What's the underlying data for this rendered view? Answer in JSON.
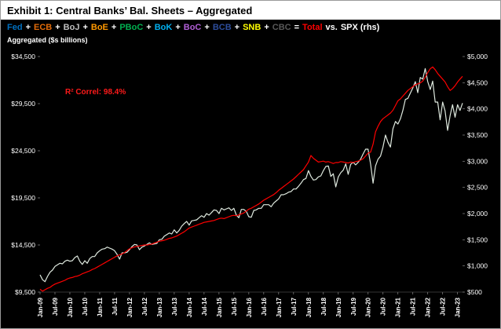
{
  "title": "Exhibit 1: Central Banks’ Bal. Sheets – Aggregated",
  "subtitle": "Aggregated ($s billions)",
  "annotation": {
    "r2": "R² Correl: 98.4%",
    "color": "#ff1a1a"
  },
  "legend": {
    "segments": [
      {
        "name": "fed",
        "text": "Fed",
        "color": "#0070C0"
      },
      {
        "name": "plus-1",
        "text": "+",
        "color": "#ffffff"
      },
      {
        "name": "ecb",
        "text": "ECB",
        "color": "#e36c0a"
      },
      {
        "name": "plus-2",
        "text": "+",
        "color": "#ffffff"
      },
      {
        "name": "boj",
        "text": "BoJ",
        "color": "#bfbfbf"
      },
      {
        "name": "plus-3",
        "text": "+",
        "color": "#ffffff"
      },
      {
        "name": "boe",
        "text": "BoE",
        "color": "#ff9900"
      },
      {
        "name": "plus-4",
        "text": "+",
        "color": "#ffffff"
      },
      {
        "name": "pboc",
        "text": "PBoC",
        "color": "#00b050"
      },
      {
        "name": "plus-5",
        "text": "+",
        "color": "#ffffff"
      },
      {
        "name": "bok",
        "text": "BoK",
        "color": "#00b0f0"
      },
      {
        "name": "plus-6",
        "text": "+",
        "color": "#ffffff"
      },
      {
        "name": "boc",
        "text": "BoC",
        "color": "#b25fd8"
      },
      {
        "name": "plus-7",
        "text": "+",
        "color": "#ffffff"
      },
      {
        "name": "bcb",
        "text": "BCB",
        "color": "#2d4d9b"
      },
      {
        "name": "plus-8",
        "text": "+",
        "color": "#ffffff"
      },
      {
        "name": "snb",
        "text": "SNB",
        "color": "#ffff00"
      },
      {
        "name": "plus-9",
        "text": "+",
        "color": "#ffffff"
      },
      {
        "name": "cbc",
        "text": "CBC",
        "color": "#595959"
      },
      {
        "name": "equals",
        "text": "=",
        "color": "#ffffff"
      },
      {
        "name": "total",
        "text": "Total",
        "color": "#ff0000"
      },
      {
        "name": "vs",
        "text": "vs.",
        "color": "#ffffff"
      },
      {
        "name": "spx",
        "text": "SPX (rhs)",
        "color": "#ffffff"
      }
    ]
  },
  "chart_data": {
    "type": "line",
    "title": "Exhibit 1: Central Banks’ Bal. Sheets – Aggregated",
    "subtitle": "Aggregated ($s billions)",
    "x_axis": {
      "unit": "month",
      "start_label": "Jan-09",
      "end_label": "Mar-23",
      "tick_interval": 6,
      "tick_labels": [
        "Jan-09",
        "Jul-09",
        "Jan-10",
        "Jul-10",
        "Jan-11",
        "Jul-11",
        "Jan-12",
        "Jul-12",
        "Jan-13",
        "Jul-13",
        "Jan-14",
        "Jul-14",
        "Jan-15",
        "Jul-15",
        "Jan-16",
        "Jul-16",
        "Jan-17",
        "Jul-17",
        "Jan-18",
        "Jul-18",
        "Jan-19",
        "Jul-19",
        "Jan-20",
        "Jul-20",
        "Jan-21",
        "Jul-21",
        "Jan-22",
        "Jul-22",
        "Jan-23"
      ]
    },
    "left_axis": {
      "min": 9500,
      "max": 34500,
      "tick_values": [
        9500,
        14500,
        19500,
        24500,
        29500,
        34500
      ],
      "tick_labels": [
        "$9,500",
        "$14,500",
        "$19,500",
        "$24,500",
        "$29,500",
        "$34,500"
      ]
    },
    "right_axis": {
      "min": 500,
      "max": 5000,
      "tick_values": [
        500,
        1000,
        1500,
        2000,
        2500,
        3000,
        3500,
        4000,
        4500,
        5000
      ],
      "tick_labels": [
        "$500",
        "$1,000",
        "$1,500",
        "$2,000",
        "$2,500",
        "$3,000",
        "$3,500",
        "$4,000",
        "$4,500",
        "$5,000"
      ]
    },
    "series": [
      {
        "name": "Total",
        "axis": "left",
        "color": "#ff0000",
        "values": [
          9800,
          9600,
          9750,
          9900,
          10000,
          10200,
          10350,
          10450,
          10550,
          10650,
          10750,
          10900,
          11000,
          11050,
          11150,
          11200,
          11300,
          11450,
          11550,
          11650,
          11750,
          11900,
          12000,
          12150,
          12300,
          12450,
          12600,
          12750,
          12900,
          13050,
          13200,
          13350,
          13450,
          13550,
          13700,
          13900,
          14100,
          14200,
          14300,
          14350,
          14400,
          14450,
          14500,
          14500,
          14550,
          14600,
          14700,
          14800,
          14900,
          14950,
          15000,
          15100,
          15200,
          15250,
          15350,
          15450,
          15600,
          15750,
          15900,
          16100,
          16300,
          16400,
          16500,
          16600,
          16700,
          16800,
          16900,
          16950,
          17000,
          17050,
          17100,
          17200,
          17300,
          17350,
          17300,
          17400,
          17500,
          17600,
          17650,
          17600,
          17700,
          17800,
          17900,
          18100,
          18300,
          18400,
          18550,
          18700,
          18850,
          19050,
          19250,
          19400,
          19550,
          19700,
          19850,
          20050,
          20300,
          20500,
          20700,
          20900,
          21100,
          21300,
          21500,
          21750,
          22000,
          22250,
          22500,
          22900,
          23300,
          24000,
          23700,
          23500,
          23300,
          23350,
          23400,
          23300,
          23350,
          23250,
          23150,
          23250,
          23250,
          23350,
          23300,
          23250,
          23200,
          23300,
          23250,
          23350,
          23400,
          23500,
          23650,
          23950,
          24250,
          24350,
          25200,
          26500,
          27100,
          27600,
          27900,
          28100,
          28300,
          28500,
          28800,
          29300,
          29800,
          30000,
          30300,
          30600,
          30900,
          31100,
          31300,
          31500,
          31600,
          31700,
          31900,
          32300,
          32800,
          33200,
          33400,
          33100,
          32700,
          32400,
          32100,
          31800,
          31300,
          30900,
          31100,
          31400,
          31800,
          32100,
          32400
        ]
      },
      {
        "name": "SPX",
        "axis": "right",
        "color": "#dfe9df",
        "values": [
          830,
          735,
          700,
          800,
          880,
          920,
          990,
          1020,
          1050,
          1040,
          1090,
          1110,
          1090,
          1100,
          1160,
          1190,
          1090,
          1030,
          1100,
          1050,
          1140,
          1180,
          1180,
          1250,
          1290,
          1320,
          1330,
          1360,
          1340,
          1320,
          1290,
          1220,
          1130,
          1250,
          1250,
          1260,
          1310,
          1370,
          1410,
          1400,
          1310,
          1360,
          1380,
          1410,
          1440,
          1410,
          1420,
          1430,
          1500,
          1510,
          1570,
          1600,
          1630,
          1610,
          1690,
          1630,
          1680,
          1760,
          1810,
          1850,
          1780,
          1860,
          1870,
          1880,
          1920,
          1960,
          1930,
          2000,
          1970,
          2020,
          2070,
          2060,
          2000,
          2100,
          2070,
          2090,
          2110,
          2060,
          2100,
          1970,
          1920,
          2080,
          2080,
          2040,
          1940,
          1930,
          2060,
          2070,
          2100,
          2100,
          2170,
          2170,
          2170,
          2130,
          2200,
          2240,
          2280,
          2360,
          2360,
          2380,
          2410,
          2420,
          2470,
          2470,
          2520,
          2580,
          2650,
          2670,
          2820,
          2710,
          2640,
          2650,
          2700,
          2720,
          2820,
          2900,
          2910,
          2710,
          2760,
          2510,
          2700,
          2780,
          2830,
          2950,
          2750,
          2940,
          2980,
          2930,
          2980,
          3040,
          3140,
          3230,
          3230,
          2950,
          2580,
          2910,
          3040,
          3100,
          3270,
          3500,
          3360,
          3270,
          3620,
          3760,
          3710,
          3810,
          3970,
          4180,
          4200,
          4300,
          4400,
          4520,
          4310,
          4600,
          4570,
          4770,
          4520,
          4370,
          4530,
          4130,
          4130,
          3790,
          4130,
          3960,
          3590,
          3870,
          4080,
          3840,
          4080,
          3970,
          4110
        ]
      }
    ],
    "grid": false,
    "legend_position": "top"
  }
}
